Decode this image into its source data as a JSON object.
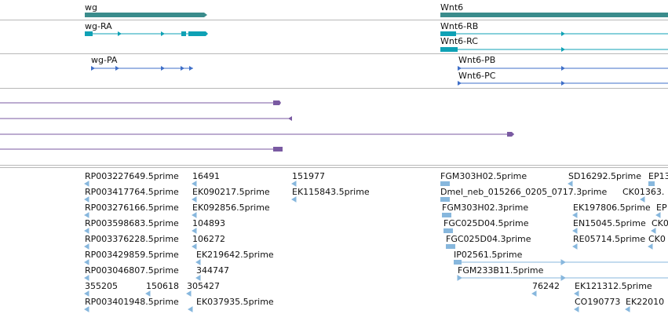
{
  "colors": {
    "gene": "#3a8c8c",
    "transcript": "#0fa1b5",
    "cds_arrow": "#3f6fc8",
    "protein_line": "#7a5aa2",
    "est_line": "#87b7dd",
    "separator": "#b8b8b8"
  },
  "genes": {
    "gene_1": "wg",
    "gene_2": "Wnt6"
  },
  "transcripts": {
    "t1": "wg-RA",
    "t2": "Wnt6-RB",
    "t3": "Wnt6-RC"
  },
  "proteins": {
    "p1": "wg-PA",
    "p2": "Wnt6-PB",
    "p3": "Wnt6-PC"
  },
  "ests": [
    "RP003227649.5prime",
    "16491",
    "151977",
    "FGM303H02.5prime",
    "SD16292.5prime",
    "EP13",
    "RP003417764.5prime",
    "EK090217.5prime",
    "EK115843.5prime",
    "Dmel_neb_015266_0205_0717.3prime",
    "CK01363.",
    "RP003276166.5prime",
    "EK092856.5prime",
    "FGM303H02.3prime",
    "EK197806.5prime",
    "EP",
    "RP003598683.5prime",
    "104893",
    "FGC025D04.5prime",
    "EN15045.5prime",
    "CK0",
    "RP003376228.5prime",
    "106272",
    "FGC025D04.3prime",
    "RE05714.5prime",
    "CK0",
    "RP003429859.5prime",
    "EK219642.5prime",
    "IP02561.5prime",
    "RP003046807.5prime",
    "344747",
    "FGM233B11.5prime",
    "355205",
    "150618",
    "305427",
    "76242",
    "EK121312.5prime",
    "RP003401948.5prime",
    "EK037935.5prime",
    "CO190773",
    "EK22010"
  ]
}
